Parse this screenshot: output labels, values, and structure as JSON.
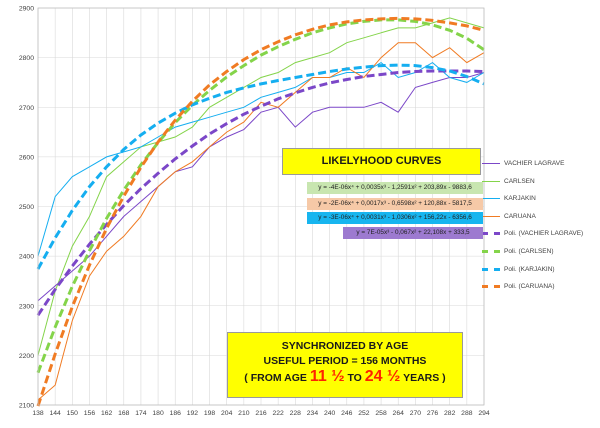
{
  "colors": {
    "vachier": "#7b47c8",
    "carlsen": "#84d44a",
    "karjakin": "#15aef0",
    "caruana": "#f07b23",
    "banner": "#ffff00",
    "grid": "#d9d9d9"
  },
  "banners": {
    "title": "LIKELYHOOD CURVES",
    "sync_line1": "SYNCHRONIZED  BY AGE",
    "sync_line2": "USEFUL PERIOD = 156 MONTHS",
    "sync_pre": "( FROM AGE ",
    "sync_age_start": "11 ½",
    "sync_mid": " TO ",
    "sync_age_end": "24 ½",
    "sync_post": " YEARS  )"
  },
  "equations": [
    {
      "text": "y = -4E-06x⁴ + 0,0035x³ - 1,2591x² + 203,89x - 9883,6",
      "bg": "#c8e6b0"
    },
    {
      "text": "y = -2E-06x⁴ + 0,0017x³ - 0,6598x² + 120,88x - 5817,5",
      "bg": "#f6c9a7"
    },
    {
      "text": "y = -3E-06x⁴ + 0,0031x³ - 1,0306x² + 156,22x - 6356,6",
      "bg": "#17b5ef"
    },
    {
      "text": "y = 7E-05x³ - 0,067x² + 22,108x + 333,5",
      "bg": "#9d7ad0"
    }
  ],
  "chart_data": {
    "type": "line",
    "title": "",
    "xlabel": "",
    "ylabel": "",
    "xlim": [
      138,
      294
    ],
    "ylim": [
      2100,
      2900
    ],
    "x_ticks": [
      138,
      144,
      150,
      156,
      162,
      168,
      174,
      180,
      186,
      192,
      198,
      204,
      210,
      216,
      222,
      228,
      234,
      240,
      246,
      252,
      258,
      264,
      270,
      276,
      282,
      288,
      294
    ],
    "y_ticks": [
      2100,
      2200,
      2300,
      2400,
      2500,
      2600,
      2700,
      2800,
      2900
    ],
    "grid": "both",
    "legend_position": "right",
    "x": [
      138,
      144,
      150,
      156,
      162,
      168,
      174,
      180,
      186,
      192,
      198,
      204,
      210,
      216,
      222,
      228,
      234,
      240,
      246,
      252,
      258,
      264,
      270,
      276,
      282,
      288,
      294
    ],
    "series": [
      {
        "name": "VACHIER LAGRAVE",
        "color_key": "vachier",
        "style": "thin",
        "values": [
          2310,
          2340,
          2370,
          2400,
          2440,
          2480,
          2510,
          2540,
          2570,
          2580,
          2620,
          2640,
          2655,
          2690,
          2700,
          2660,
          2690,
          2700,
          2700,
          2700,
          2710,
          2690,
          2740,
          2750,
          2760,
          2760,
          2770
        ]
      },
      {
        "name": "CARLSEN",
        "color_key": "carlsen",
        "style": "thin",
        "values": [
          2200,
          2330,
          2420,
          2480,
          2560,
          2590,
          2620,
          2630,
          2640,
          2660,
          2700,
          2720,
          2740,
          2760,
          2770,
          2790,
          2800,
          2810,
          2830,
          2840,
          2850,
          2860,
          2860,
          2870,
          2880,
          2870,
          2860
        ]
      },
      {
        "name": "KARJAKIN",
        "color_key": "karjakin",
        "style": "thin",
        "values": [
          2400,
          2520,
          2560,
          2580,
          2600,
          2610,
          2620,
          2640,
          2660,
          2670,
          2680,
          2690,
          2700,
          2720,
          2730,
          2740,
          2760,
          2760,
          2770,
          2770,
          2790,
          2760,
          2770,
          2790,
          2760,
          2750,
          2770
        ]
      },
      {
        "name": "CARUANA",
        "color_key": "caruana",
        "style": "thin",
        "values": [
          2110,
          2140,
          2270,
          2360,
          2410,
          2440,
          2480,
          2540,
          2570,
          2590,
          2620,
          2650,
          2670,
          2710,
          2700,
          2730,
          2760,
          2760,
          2780,
          2760,
          2800,
          2830,
          2830,
          2800,
          2820,
          2790,
          2810
        ]
      },
      {
        "name": "Poli. (VACHIER LAGRAVE)",
        "color_key": "vachier",
        "style": "dashed",
        "values": [
          2281,
          2333,
          2380,
          2424,
          2464,
          2502,
          2536,
          2567,
          2596,
          2622,
          2646,
          2667,
          2686,
          2702,
          2717,
          2729,
          2740,
          2749,
          2756,
          2762,
          2766,
          2770,
          2772,
          2773,
          2773,
          2773,
          2772
        ]
      },
      {
        "name": "Poli. (CARLSEN)",
        "color_key": "carlsen",
        "style": "dashed",
        "values": [
          2165,
          2257,
          2339,
          2411,
          2476,
          2533,
          2584,
          2629,
          2669,
          2704,
          2734,
          2761,
          2784,
          2805,
          2822,
          2837,
          2850,
          2860,
          2868,
          2873,
          2876,
          2876,
          2873,
          2866,
          2855,
          2839,
          2816
        ]
      },
      {
        "name": "Poli. (KARJAKIN)",
        "color_key": "karjakin",
        "style": "dashed",
        "values": [
          2374,
          2437,
          2492,
          2540,
          2580,
          2615,
          2644,
          2668,
          2688,
          2705,
          2718,
          2730,
          2739,
          2747,
          2754,
          2760,
          2766,
          2772,
          2777,
          2781,
          2784,
          2785,
          2784,
          2780,
          2773,
          2762,
          2747
        ]
      },
      {
        "name": "Poli. (CARUANA)",
        "color_key": "caruana",
        "style": "dashed",
        "values": [
          2098,
          2203,
          2298,
          2382,
          2456,
          2521,
          2579,
          2630,
          2674,
          2712,
          2745,
          2772,
          2796,
          2816,
          2832,
          2846,
          2857,
          2866,
          2872,
          2876,
          2878,
          2879,
          2878,
          2875,
          2870,
          2864,
          2855
        ]
      }
    ]
  }
}
